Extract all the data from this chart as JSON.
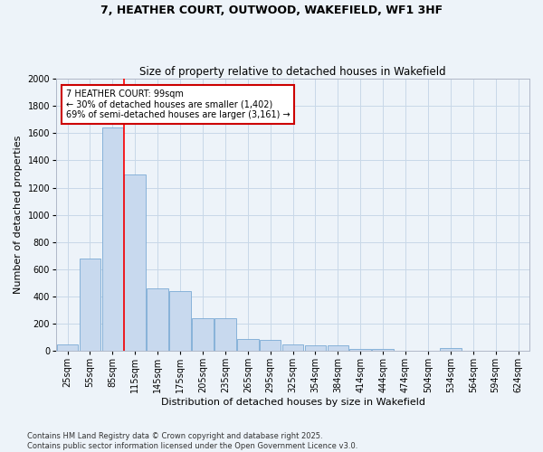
{
  "title": "7, HEATHER COURT, OUTWOOD, WAKEFIELD, WF1 3HF",
  "subtitle": "Size of property relative to detached houses in Wakefield",
  "xlabel": "Distribution of detached houses by size in Wakefield",
  "ylabel": "Number of detached properties",
  "categories": [
    "25sqm",
    "55sqm",
    "85sqm",
    "115sqm",
    "145sqm",
    "175sqm",
    "205sqm",
    "235sqm",
    "265sqm",
    "295sqm",
    "325sqm",
    "354sqm",
    "384sqm",
    "414sqm",
    "444sqm",
    "474sqm",
    "504sqm",
    "534sqm",
    "564sqm",
    "594sqm",
    "624sqm"
  ],
  "bar_values": [
    50,
    680,
    1640,
    1300,
    460,
    440,
    240,
    240,
    85,
    80,
    50,
    40,
    40,
    15,
    15,
    0,
    0,
    20,
    0,
    0,
    0
  ],
  "bar_color": "#c8d9ee",
  "bar_edge_color": "#7aaad4",
  "grid_color": "#c8d8e8",
  "red_line_x": 2.5,
  "annotation_text": "7 HEATHER COURT: 99sqm\n← 30% of detached houses are smaller (1,402)\n69% of semi-detached houses are larger (3,161) →",
  "annotation_box_color": "#ffffff",
  "annotation_box_edge": "#cc0000",
  "ylim": [
    0,
    2000
  ],
  "yticks": [
    0,
    200,
    400,
    600,
    800,
    1000,
    1200,
    1400,
    1600,
    1800,
    2000
  ],
  "footer1": "Contains HM Land Registry data © Crown copyright and database right 2025.",
  "footer2": "Contains public sector information licensed under the Open Government Licence v3.0.",
  "bg_color": "#edf3f9",
  "title_fontsize": 9,
  "subtitle_fontsize": 8.5,
  "ylabel_fontsize": 8,
  "xlabel_fontsize": 8,
  "tick_fontsize": 7,
  "footer_fontsize": 6,
  "annot_fontsize": 7
}
